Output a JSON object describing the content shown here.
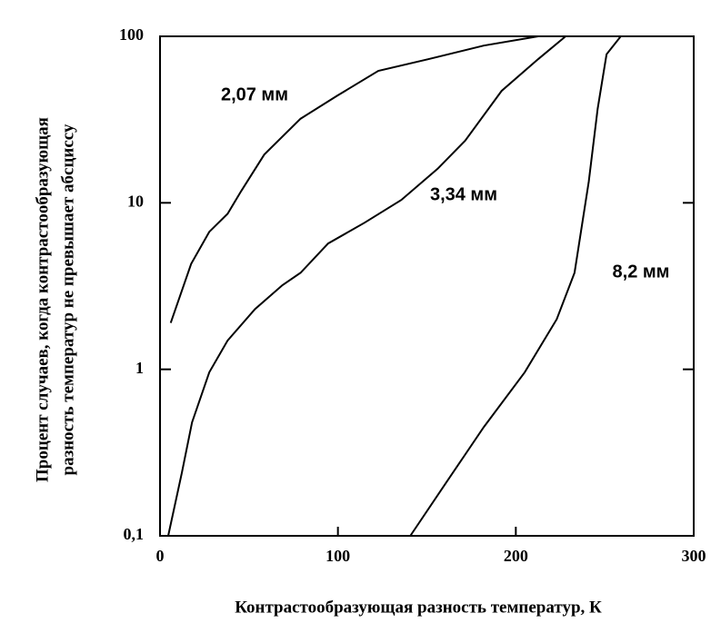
{
  "chart_data": {
    "type": "line",
    "xlabel": "Контрастообразующая разность температур, К",
    "ylabel": [
      "Процент случаев, когда контрастообразующая",
      "разность температур не превышает абсциссу"
    ],
    "xlim": [
      0,
      300
    ],
    "xticks": [
      0,
      100,
      200,
      300
    ],
    "ylim": [
      0.1,
      100
    ],
    "yscale": "log",
    "yticks": [
      {
        "value": 0.1,
        "label": "0,1"
      },
      1,
      10,
      100
    ],
    "series": [
      {
        "name": "2,07 мм",
        "color": "#000000",
        "x": [
          6,
          17.5,
          27.7,
          38,
          45.7,
          58.6,
          79,
          99.6,
          122.7,
          151,
          182,
          212.6,
          238
        ],
        "values": [
          1.9,
          4.3,
          6.7,
          8.6,
          11.8,
          19.5,
          32,
          44,
          62,
          73,
          88,
          100,
          100
        ]
      },
      {
        "name": "3,34 мм",
        "color": "#000000",
        "x": [
          4.6,
          12.3,
          18,
          27.7,
          38,
          53.4,
          68.8,
          79,
          94.5,
          115,
          135.6,
          156,
          171.5,
          192,
          212.6,
          228,
          248.6
        ],
        "values": [
          0.1,
          0.24,
          0.48,
          0.96,
          1.49,
          2.3,
          3.2,
          3.8,
          5.7,
          7.6,
          10.4,
          16,
          23.6,
          47,
          73,
          100,
          100
        ]
      },
      {
        "name": "8,2 мм",
        "color": "#000000",
        "x": [
          140.7,
          161,
          182,
          205,
          223,
          233,
          241,
          246,
          251,
          259
        ],
        "values": [
          0.1,
          0.21,
          0.45,
          0.96,
          2.0,
          3.8,
          13.4,
          36.7,
          78,
          100
        ]
      }
    ]
  }
}
